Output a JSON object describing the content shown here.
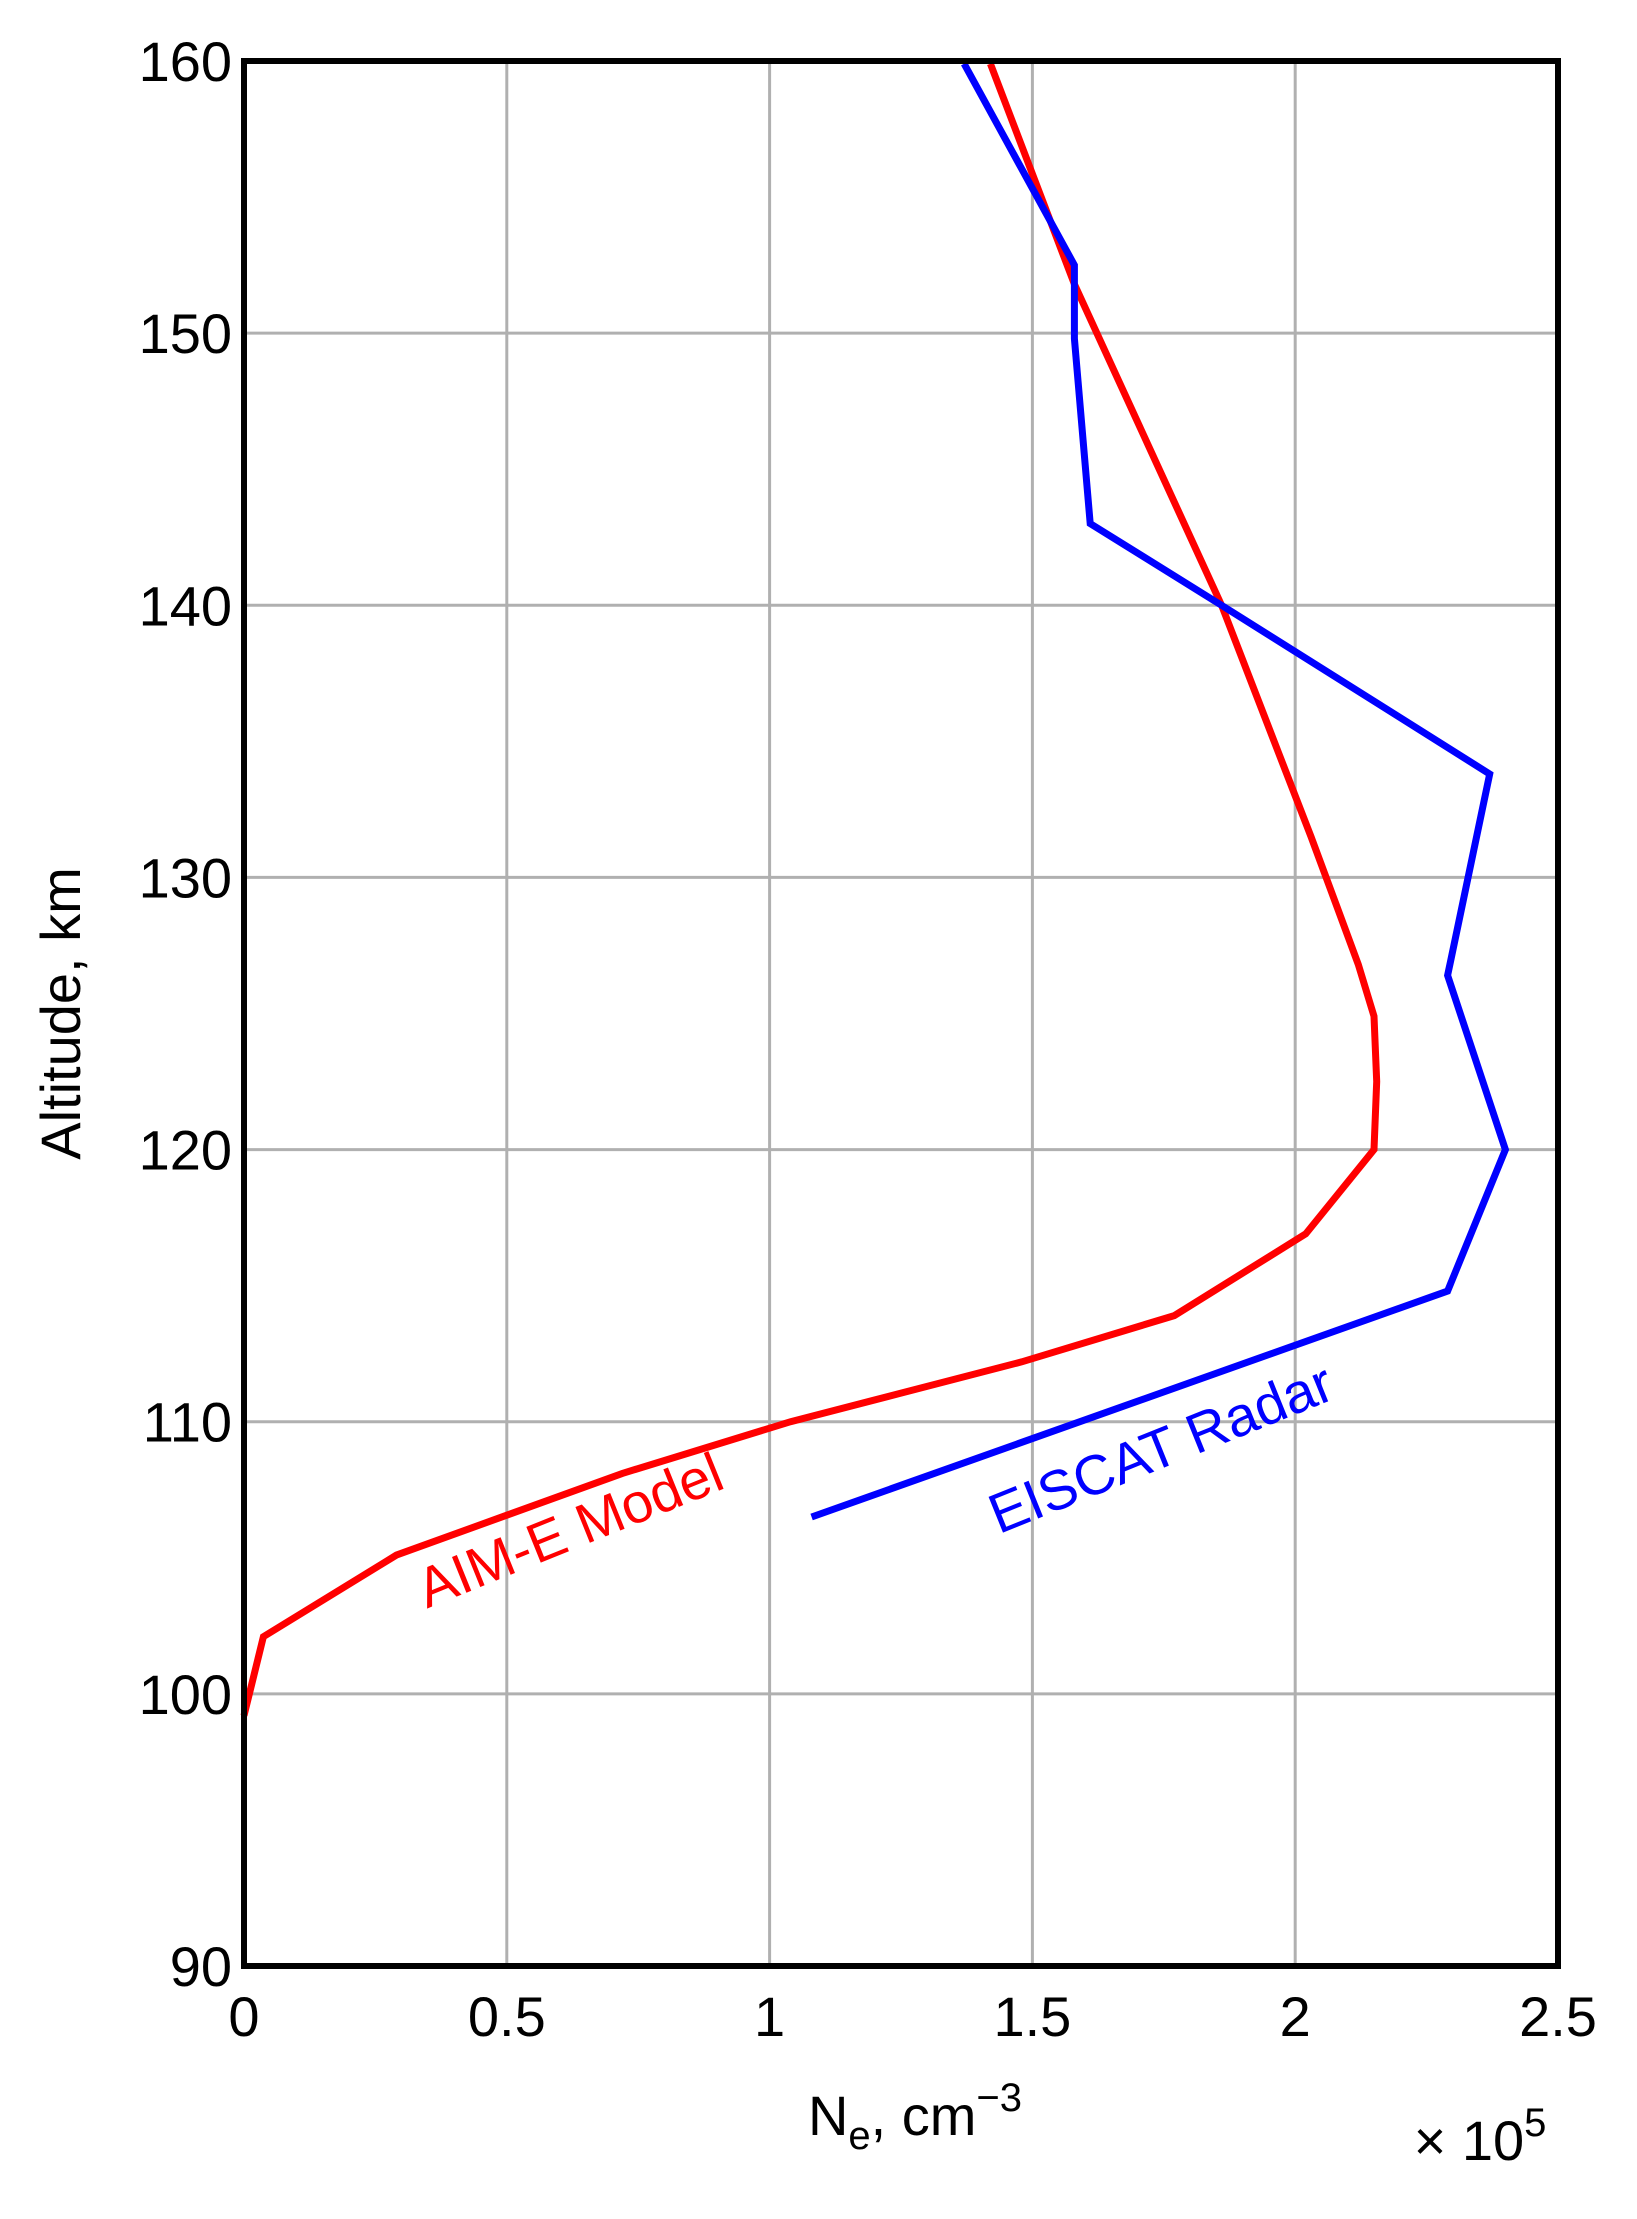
{
  "chart_data": {
    "type": "line",
    "xlabel": {
      "base": "N",
      "sub": "e",
      "mid": ", cm",
      "sup": "−3"
    },
    "ylabel": "Altitude, km",
    "x_multiplier": {
      "base": "× 10",
      "sup": "5"
    },
    "xlim": [
      0,
      2.5
    ],
    "xticks": [
      0,
      0.5,
      1,
      1.5,
      2,
      2.5
    ],
    "ylim": [
      90,
      160
    ],
    "yticks": [
      90,
      100,
      110,
      120,
      130,
      140,
      150,
      160
    ],
    "grid": true,
    "series": [
      {
        "name": "AIM-E Model",
        "color": "#ff0000",
        "x": [
          0,
          0.037,
          0.29,
          0.72,
          1.04,
          1.48,
          1.77,
          2.02,
          2.15,
          2.155,
          2.15,
          2.12,
          2.08,
          2.03,
          1.97,
          1.86,
          1.58,
          1.42
        ],
        "values": [
          99.2,
          102.1,
          105.1,
          108.1,
          110,
          112.2,
          113.9,
          116.9,
          120,
          122.5,
          124.9,
          126.8,
          128.9,
          131.5,
          134.5,
          140,
          151.8,
          159.9
        ]
      },
      {
        "name": "EISCAT Radar",
        "color": "#0000ff",
        "x": [
          1.08,
          2.29,
          2.4,
          2.29,
          2.37,
          1.86,
          1.61,
          1.58,
          1.58,
          1.37
        ],
        "values": [
          106.5,
          114.8,
          120,
          126.4,
          133.8,
          140,
          143,
          149.8,
          152.5,
          159.9
        ]
      }
    ]
  }
}
